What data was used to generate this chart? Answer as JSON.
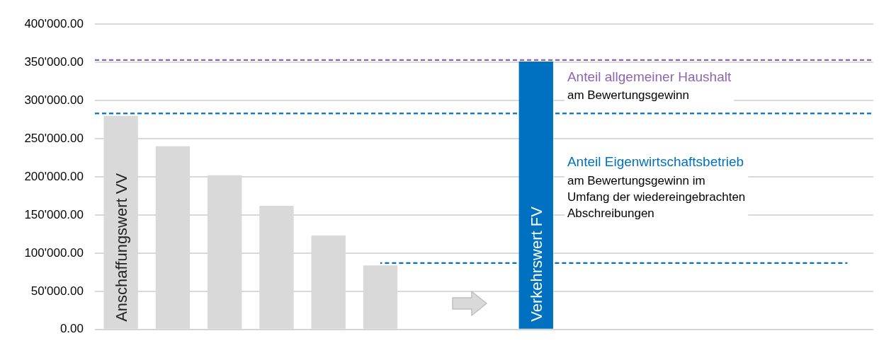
{
  "chart_data": {
    "type": "bar",
    "categories": [
      "Anschaffungswert VV",
      null,
      null,
      null,
      null,
      null,
      null,
      null,
      "Verkehrswert FV",
      null,
      null,
      null,
      null,
      null,
      null
    ],
    "series": [
      {
        "type": "bar",
        "values": [
          280000,
          240000,
          202000,
          162000,
          123000,
          84000,
          null,
          null,
          351000,
          null,
          null,
          null,
          null,
          null,
          null
        ],
        "colors": [
          "#d9d9d9",
          "#d9d9d9",
          "#d9d9d9",
          "#d9d9d9",
          "#d9d9d9",
          "#d9d9d9",
          "#d9d9d9",
          "#d9d9d9",
          "#0070c0",
          "#d9d9d9",
          "#d9d9d9",
          "#d9d9d9",
          "#d9d9d9",
          "#d9d9d9",
          "#d9d9d9"
        ]
      },
      {
        "type": "line",
        "color": "#0070c0",
        "line_style": "dashed",
        "marker": "none",
        "values": [
          null,
          null,
          null,
          null,
          null,
          87000,
          87000,
          87000,
          87000,
          87000,
          87000,
          87000,
          87000,
          87000,
          87000
        ]
      }
    ],
    "ylim": [
      0,
      400000
    ],
    "yticks": [
      {
        "value": 0,
        "label": "0.00"
      },
      {
        "value": 50000,
        "label": "50'000.00"
      },
      {
        "value": 100000,
        "label": "100'000.00"
      },
      {
        "value": 150000,
        "label": "150'000.00"
      },
      {
        "value": 200000,
        "label": "200'000.00"
      },
      {
        "value": 250000,
        "label": "250'000.00"
      },
      {
        "value": 300000,
        "label": "300'000.00"
      },
      {
        "value": 350000,
        "label": "350'000.00"
      },
      {
        "value": 400000,
        "label": "400'000.00"
      }
    ],
    "ref_lines": [
      {
        "axis": "y",
        "value": 353000,
        "label": "Anteil allgemeiner Haushalt",
        "color": "#8e65ad",
        "line_style": "dashed"
      },
      {
        "axis": "y",
        "value": 283000,
        "label": "Anteil Eigenwirtschaftsbetrieb",
        "color": "#0070c0",
        "line_style": "dashed"
      }
    ],
    "annotations": [
      "am Bewertungsgewinn",
      "am Bewertungsgewinn im Umfang der wiedereingebrachten Abschreibungen"
    ],
    "grid": "y",
    "legend": false,
    "tick_labels": "y"
  }
}
